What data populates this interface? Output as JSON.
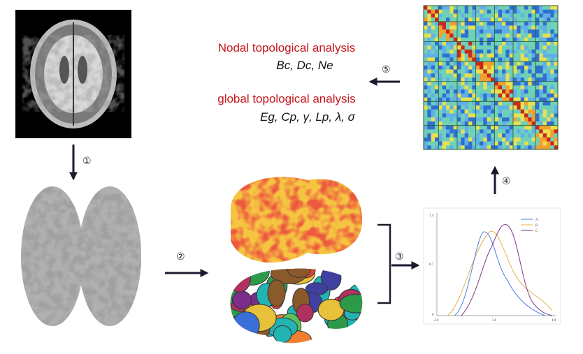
{
  "steps": [
    "①",
    "②",
    "③",
    "④",
    "⑤"
  ],
  "analysis": {
    "nodal": {
      "title": "Nodal topological analysis",
      "metrics": "Bc, Dc, Ne"
    },
    "global": {
      "title": "global topological analysis",
      "metrics": "Eg, Cp, γ, Lp, λ, σ"
    }
  },
  "density_plot": {
    "yticks": [
      "1.4",
      "0.7",
      "0"
    ],
    "xticks": [
      "2.0",
      "3.0",
      "4.0"
    ],
    "legend": [
      "A",
      "B",
      "C"
    ]
  }
}
